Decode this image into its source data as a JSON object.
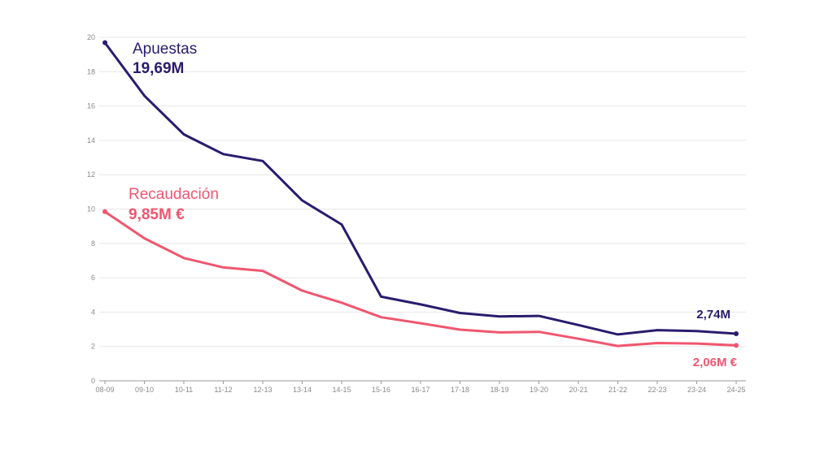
{
  "chart_data": {
    "type": "line",
    "categories": [
      "08-09",
      "09-10",
      "10-11",
      "11-12",
      "12-13",
      "13-14",
      "14-15",
      "15-16",
      "16-17",
      "17-18",
      "18-19",
      "19-20",
      "20-21",
      "21-22",
      "22-23",
      "23-24",
      "24-25"
    ],
    "ylim": [
      0,
      20
    ],
    "yticks": [
      "0",
      "2",
      "4",
      "6",
      "8",
      "10",
      "12",
      "14",
      "16",
      "18",
      "20"
    ],
    "grid": true,
    "series": [
      {
        "key": "apuestas",
        "name": "Apuestas",
        "color": "#2a1b6e",
        "values": [
          19.69,
          16.6,
          14.35,
          13.2,
          12.8,
          10.5,
          9.1,
          4.9,
          4.45,
          3.95,
          3.75,
          3.78,
          3.25,
          2.7,
          2.95,
          2.9,
          2.74
        ],
        "start_label": "19,69M",
        "end_label": "2,74M"
      },
      {
        "key": "recaudacion",
        "name": "Recaudación",
        "color": "#f0566f",
        "values": [
          9.85,
          8.3,
          7.15,
          6.6,
          6.4,
          5.25,
          4.55,
          3.7,
          3.35,
          2.98,
          2.82,
          2.85,
          2.45,
          2.03,
          2.2,
          2.17,
          2.06
        ],
        "start_label": "9,85M €",
        "end_label": "2,06M €"
      }
    ]
  }
}
